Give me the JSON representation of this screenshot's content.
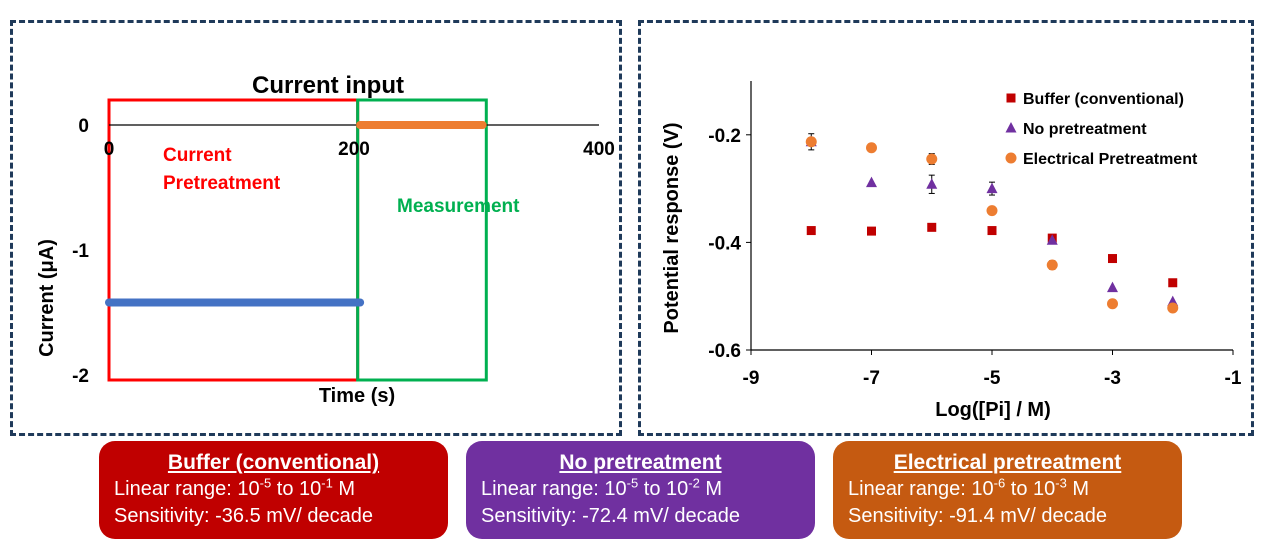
{
  "chart_data": [
    {
      "type": "line",
      "title": "Current input",
      "xlabel": "Time (s)",
      "ylabel": "Current (μA)",
      "xlim": [
        0,
        400
      ],
      "ylim": [
        -2,
        0
      ],
      "x_ticks": [
        "0",
        "200",
        "400"
      ],
      "y_ticks": [
        "0",
        "-1",
        "-2"
      ],
      "grid": false,
      "series": [
        {
          "color": "#4472c4",
          "points": [
            [
              0,
              -1.42
            ],
            [
              205,
              -1.42
            ]
          ]
        },
        {
          "color": "#ed7d31",
          "points": [
            [
              205,
              0
            ],
            [
              305,
              0
            ]
          ]
        }
      ],
      "regions": [
        {
          "label": "Current\nPretreatment",
          "x_range": [
            0,
            203
          ],
          "color": "#ff0000"
        },
        {
          "label": "Measurement",
          "x_range": [
            203,
            308
          ],
          "color": "#00b050"
        }
      ]
    },
    {
      "type": "scatter",
      "title": "",
      "xlabel": "Log([Pi] / M)",
      "ylabel": "Potential response (V)",
      "xlim": [
        -9,
        -1
      ],
      "ylim": [
        -0.6,
        -0.1
      ],
      "x_ticks": [
        "-9",
        "-7",
        "-5",
        "-3",
        "-1"
      ],
      "y_ticks": [
        "-0.2",
        "-0.4",
        "-0.6"
      ],
      "grid": false,
      "legend_position": "top-right",
      "series": [
        {
          "name": "Buffer (conventional)",
          "marker": "square",
          "color": "#c00000",
          "x": [
            -8,
            -7,
            -6,
            -5,
            -4,
            -3,
            -2
          ],
          "y": [
            -0.378,
            -0.379,
            -0.372,
            -0.378,
            -0.392,
            -0.43,
            -0.475
          ],
          "err": [
            0,
            0,
            0,
            0,
            0,
            0,
            0
          ]
        },
        {
          "name": "No pretreatment",
          "marker": "triangle",
          "color": "#7030a0",
          "x": [
            -8,
            -7,
            -6,
            -5,
            -4,
            -3,
            -2
          ],
          "y": [
            -0.213,
            -0.289,
            -0.292,
            -0.3,
            -0.396,
            -0.484,
            -0.51
          ],
          "err": [
            0.015,
            0,
            0.017,
            0.012,
            0,
            0,
            0
          ]
        },
        {
          "name": "Electrical Pretreatment",
          "marker": "circle",
          "color": "#ed7d31",
          "x": [
            -8,
            -7,
            -6,
            -5,
            -4,
            -3,
            -2
          ],
          "y": [
            -0.213,
            -0.224,
            -0.245,
            -0.341,
            -0.442,
            -0.514,
            -0.522
          ],
          "err": [
            0,
            0,
            0.01,
            0,
            0.008,
            0,
            0
          ]
        }
      ]
    }
  ],
  "summary_boxes": [
    {
      "color": "#c00000",
      "title": "Buffer (conventional)",
      "range_prefix": "Linear range: 10",
      "range_exp1": "-5",
      "range_mid": " to 10",
      "range_exp2": "-1",
      "range_suffix": " M",
      "sensitivity": "Sensitivity: -36.5 mV/ decade"
    },
    {
      "color": "#7030a0",
      "title": "No pretreatment",
      "range_prefix": "Linear range: 10",
      "range_exp1": "-5",
      "range_mid": " to 10",
      "range_exp2": "-2",
      "range_suffix": " M",
      "sensitivity": "Sensitivity: -72.4 mV/ decade"
    },
    {
      "color": "#c55a11",
      "title": "Electrical pretreatment",
      "range_prefix": "Linear range: 10",
      "range_exp1": "-6",
      "range_mid": " to 10",
      "range_exp2": "-3",
      "range_suffix": " M",
      "sensitivity": "Sensitivity: -91.4 mV/ decade"
    }
  ]
}
